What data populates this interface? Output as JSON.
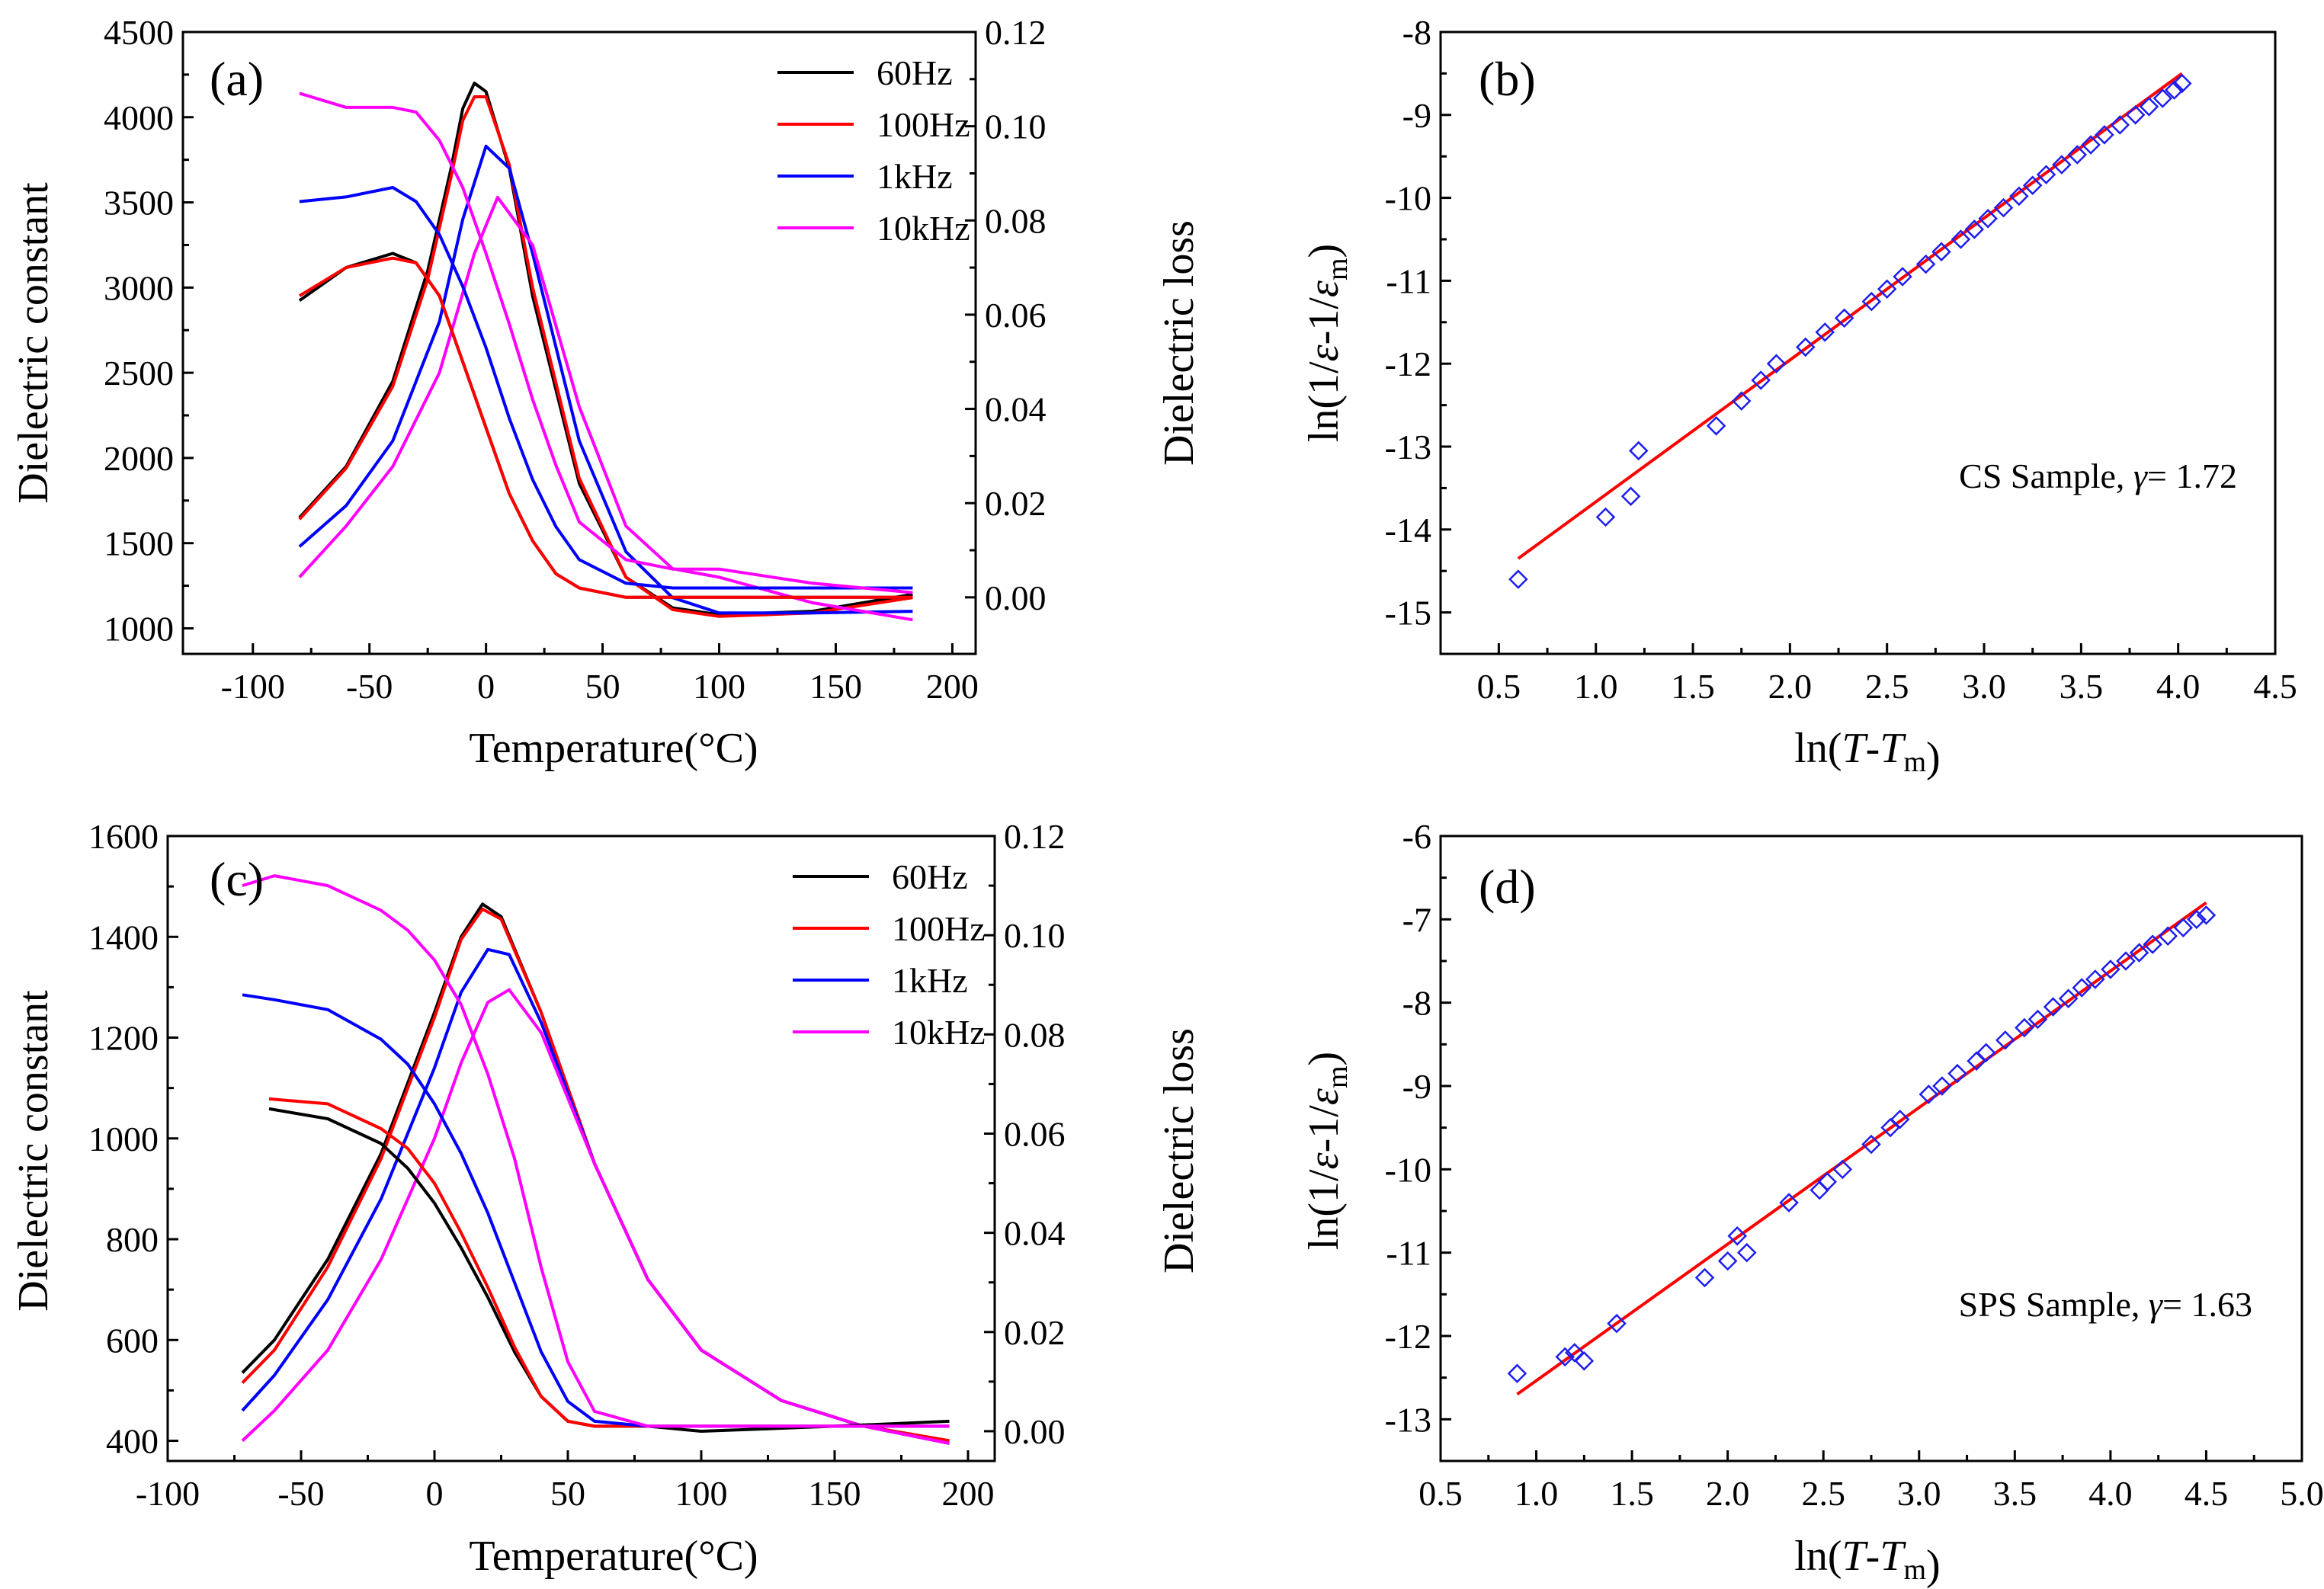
{
  "chart_data": [
    {
      "id": "a",
      "type": "line",
      "panel_label": "(a)",
      "xlabel": "Temperature(°C)",
      "ylabel": "Dielectric constant",
      "y2label": "Dielectric loss",
      "xlim": [
        -130,
        210
      ],
      "xticks": [
        -100,
        -50,
        0,
        50,
        100,
        150,
        200
      ],
      "xticklabels": [
        "-100",
        "-50",
        "0",
        "50",
        "100",
        "150",
        "200"
      ],
      "ylim": [
        850,
        4500
      ],
      "yticks": [
        1000,
        1500,
        2000,
        2500,
        3000,
        3500,
        4000,
        4500
      ],
      "yticklabels": [
        "1000",
        "1500",
        "2000",
        "2500",
        "3000",
        "3500",
        "4000",
        "4500"
      ],
      "y2lim": [
        -0.012,
        0.12
      ],
      "y2ticks": [
        0.0,
        0.02,
        0.04,
        0.06,
        0.08,
        0.1,
        0.12
      ],
      "y2ticklabels": [
        "0.00",
        "0.02",
        "0.04",
        "0.06",
        "0.08",
        "0.10",
        "0.12"
      ],
      "legend_position": "top-right",
      "series": [
        {
          "name": "60Hz",
          "color": "#000000",
          "kind": "constant",
          "x": [
            -80,
            -60,
            -40,
            -25,
            -15,
            -10,
            -5,
            0,
            10,
            20,
            40,
            60,
            80,
            100,
            140,
            183
          ],
          "y": [
            1650,
            1950,
            2450,
            3100,
            3700,
            4050,
            4200,
            4150,
            3700,
            2950,
            1850,
            1300,
            1120,
            1080,
            1100,
            1200
          ]
        },
        {
          "name": "100Hz",
          "color": "#ff0000",
          "kind": "constant",
          "x": [
            -80,
            -60,
            -40,
            -25,
            -15,
            -10,
            -5,
            0,
            10,
            20,
            40,
            60,
            80,
            100,
            140,
            183
          ],
          "y": [
            1640,
            1940,
            2420,
            3050,
            3650,
            3980,
            4120,
            4120,
            3720,
            3000,
            1880,
            1300,
            1110,
            1070,
            1090,
            1180
          ]
        },
        {
          "name": "1kHz",
          "color": "#0000ff",
          "kind": "constant",
          "x": [
            -80,
            -60,
            -40,
            -20,
            -10,
            0,
            10,
            20,
            40,
            60,
            80,
            100,
            140,
            183
          ],
          "y": [
            1480,
            1720,
            2100,
            2800,
            3400,
            3830,
            3700,
            3200,
            2100,
            1450,
            1180,
            1090,
            1090,
            1100
          ]
        },
        {
          "name": "10kHz",
          "color": "#ff00ff",
          "kind": "constant",
          "x": [
            -80,
            -60,
            -40,
            -20,
            -5,
            5,
            20,
            40,
            60,
            80,
            100,
            140,
            183
          ],
          "y": [
            1300,
            1600,
            1950,
            2500,
            3200,
            3530,
            3250,
            2300,
            1600,
            1350,
            1300,
            1150,
            1050
          ]
        },
        {
          "name": "60Hz",
          "color": "#000000",
          "kind": "loss",
          "x": [
            -80,
            -60,
            -40,
            -30,
            -20,
            -10,
            0,
            10,
            20,
            30,
            40,
            60,
            80,
            100,
            140,
            183
          ],
          "y": [
            0.063,
            0.07,
            0.073,
            0.071,
            0.064,
            0.05,
            0.036,
            0.022,
            0.012,
            0.005,
            0.002,
            0.0,
            0.0,
            0.0,
            0.0,
            0.0
          ]
        },
        {
          "name": "100Hz",
          "color": "#ff0000",
          "kind": "loss",
          "x": [
            -80,
            -60,
            -40,
            -30,
            -20,
            -10,
            0,
            10,
            20,
            30,
            40,
            60,
            80,
            100,
            140,
            183
          ],
          "y": [
            0.064,
            0.07,
            0.072,
            0.071,
            0.064,
            0.05,
            0.036,
            0.022,
            0.012,
            0.005,
            0.002,
            0.0,
            0.0,
            0.0,
            0.0,
            0.0
          ]
        },
        {
          "name": "1kHz",
          "color": "#0000ff",
          "kind": "loss",
          "x": [
            -80,
            -60,
            -40,
            -30,
            -20,
            -10,
            0,
            10,
            20,
            30,
            40,
            60,
            80,
            100,
            140,
            183
          ],
          "y": [
            0.084,
            0.085,
            0.087,
            0.084,
            0.077,
            0.066,
            0.053,
            0.038,
            0.025,
            0.015,
            0.008,
            0.003,
            0.002,
            0.002,
            0.002,
            0.002
          ]
        },
        {
          "name": "10kHz",
          "color": "#ff00ff",
          "kind": "loss",
          "x": [
            -80,
            -60,
            -40,
            -30,
            -20,
            -10,
            0,
            10,
            20,
            30,
            40,
            60,
            80,
            100,
            140,
            183
          ],
          "y": [
            0.107,
            0.104,
            0.104,
            0.103,
            0.097,
            0.087,
            0.073,
            0.058,
            0.042,
            0.028,
            0.016,
            0.008,
            0.006,
            0.006,
            0.003,
            0.001
          ]
        }
      ]
    },
    {
      "id": "b",
      "type": "scatter",
      "panel_label": "(b)",
      "xlabel": "ln(T-Tm)",
      "ylabel": "ln(1/ε-1/εm)",
      "xlim": [
        0.2,
        4.5
      ],
      "xticks": [
        0.5,
        1.0,
        1.5,
        2.0,
        2.5,
        3.0,
        3.5,
        4.0,
        4.5
      ],
      "xticklabels": [
        "0.5",
        "1.0",
        "1.5",
        "2.0",
        "2.5",
        "3.0",
        "3.5",
        "4.0",
        "4.5"
      ],
      "ylim": [
        -15.5,
        -8
      ],
      "yticks": [
        -15,
        -14,
        -13,
        -12,
        -11,
        -10,
        -9,
        -8
      ],
      "yticklabels": [
        "-15",
        "-14",
        "-13",
        "-12",
        "-11",
        "-10",
        "-9",
        "-8"
      ],
      "annotation": "CS Sample, γ= 1.72",
      "points": {
        "x": [
          0.6,
          1.05,
          1.18,
          1.22,
          1.62,
          1.75,
          1.85,
          1.93,
          2.08,
          2.18,
          2.28,
          2.42,
          2.5,
          2.58,
          2.7,
          2.78,
          2.88,
          2.95,
          3.02,
          3.1,
          3.18,
          3.25,
          3.32,
          3.4,
          3.48,
          3.55,
          3.62,
          3.7,
          3.78,
          3.85,
          3.92,
          3.98,
          4.02
        ],
        "y": [
          -14.6,
          -13.85,
          -13.6,
          -13.05,
          -12.75,
          -12.45,
          -12.2,
          -12.0,
          -11.8,
          -11.62,
          -11.45,
          -11.25,
          -11.1,
          -10.95,
          -10.8,
          -10.65,
          -10.5,
          -10.38,
          -10.25,
          -10.12,
          -9.98,
          -9.85,
          -9.72,
          -9.6,
          -9.48,
          -9.36,
          -9.24,
          -9.12,
          -9.0,
          -8.9,
          -8.8,
          -8.7,
          -8.62
        ]
      },
      "fit": {
        "x": [
          0.6,
          4.02
        ],
        "y": [
          -14.35,
          -8.5
        ]
      }
    },
    {
      "id": "c",
      "type": "line",
      "panel_label": "(c)",
      "xlabel": "Temperature(°C)",
      "ylabel": "Dielectric constant",
      "y2label": "Dielectric loss",
      "xlim": [
        -100,
        210
      ],
      "xticks": [
        -100,
        -50,
        0,
        50,
        100,
        150,
        200
      ],
      "xticklabels": [
        "-100",
        "-50",
        "0",
        "50",
        "100",
        "150",
        "200"
      ],
      "ylim": [
        360,
        1600
      ],
      "yticks": [
        400,
        600,
        800,
        1000,
        1200,
        1400,
        1600
      ],
      "yticklabels": [
        "400",
        "600",
        "800",
        "1000",
        "1200",
        "1400",
        "1600"
      ],
      "y2lim": [
        -0.006,
        0.12
      ],
      "y2ticks": [
        0.0,
        0.02,
        0.04,
        0.06,
        0.08,
        0.1,
        0.12
      ],
      "y2ticklabels": [
        "0.00",
        "0.02",
        "0.04",
        "0.06",
        "0.08",
        "0.10",
        "0.12"
      ],
      "legend_position": "top-right",
      "series": [
        {
          "name": "60Hz",
          "color": "#000000",
          "kind": "constant",
          "x": [
            -72,
            -60,
            -40,
            -20,
            0,
            10,
            18,
            25,
            40,
            60,
            80,
            100,
            130,
            160,
            193
          ],
          "y": [
            535,
            600,
            760,
            970,
            1250,
            1400,
            1465,
            1440,
            1250,
            950,
            720,
            580,
            480,
            430,
            400
          ]
        },
        {
          "name": "100Hz",
          "color": "#ff0000",
          "kind": "constant",
          "x": [
            -72,
            -60,
            -40,
            -20,
            0,
            10,
            18,
            25,
            40,
            60,
            80,
            100,
            130,
            160,
            193
          ],
          "y": [
            515,
            580,
            745,
            960,
            1240,
            1395,
            1455,
            1435,
            1250,
            950,
            720,
            580,
            480,
            430,
            400
          ]
        },
        {
          "name": "1kHz",
          "color": "#0000ff",
          "kind": "constant",
          "x": [
            -72,
            -60,
            -40,
            -20,
            0,
            10,
            20,
            28,
            40,
            60,
            80,
            100,
            130,
            160,
            193
          ],
          "y": [
            460,
            530,
            680,
            880,
            1140,
            1290,
            1375,
            1365,
            1230,
            950,
            720,
            580,
            480,
            430,
            395
          ]
        },
        {
          "name": "10kHz",
          "color": "#ff00ff",
          "kind": "constant",
          "x": [
            -72,
            -60,
            -40,
            -20,
            0,
            10,
            20,
            28,
            40,
            60,
            80,
            100,
            130,
            160,
            193
          ],
          "y": [
            400,
            460,
            580,
            760,
            1000,
            1150,
            1270,
            1295,
            1210,
            950,
            720,
            580,
            480,
            430,
            395
          ]
        },
        {
          "name": "60Hz",
          "color": "#000000",
          "kind": "loss",
          "x": [
            -62,
            -40,
            -20,
            -10,
            0,
            10,
            20,
            30,
            40,
            50,
            60,
            80,
            100,
            150,
            193
          ],
          "y": [
            0.065,
            0.063,
            0.058,
            0.053,
            0.046,
            0.037,
            0.027,
            0.016,
            0.007,
            0.002,
            0.001,
            0.001,
            0.0,
            0.001,
            0.002
          ]
        },
        {
          "name": "100Hz",
          "color": "#ff0000",
          "kind": "loss",
          "x": [
            -62,
            -40,
            -20,
            -10,
            0,
            10,
            20,
            30,
            40,
            50,
            60,
            80,
            100,
            150,
            193
          ],
          "y": [
            0.067,
            0.066,
            0.061,
            0.057,
            0.05,
            0.04,
            0.029,
            0.017,
            0.007,
            0.002,
            0.001,
            0.001,
            0.001,
            0.001,
            0.001
          ]
        },
        {
          "name": "1kHz",
          "color": "#0000ff",
          "kind": "loss",
          "x": [
            -72,
            -60,
            -40,
            -20,
            -10,
            0,
            10,
            20,
            30,
            40,
            50,
            60,
            80,
            100,
            150,
            193
          ],
          "y": [
            0.088,
            0.087,
            0.085,
            0.079,
            0.074,
            0.066,
            0.056,
            0.044,
            0.03,
            0.016,
            0.006,
            0.002,
            0.001,
            0.001,
            0.001,
            0.001
          ]
        },
        {
          "name": "10kHz",
          "color": "#ff00ff",
          "kind": "loss",
          "x": [
            -72,
            -60,
            -40,
            -20,
            -10,
            0,
            10,
            20,
            30,
            40,
            50,
            60,
            80,
            100,
            150,
            193
          ],
          "y": [
            0.11,
            0.112,
            0.11,
            0.105,
            0.101,
            0.095,
            0.086,
            0.072,
            0.055,
            0.033,
            0.014,
            0.004,
            0.001,
            0.001,
            0.001,
            0.001
          ]
        }
      ]
    },
    {
      "id": "d",
      "type": "scatter",
      "panel_label": "(d)",
      "xlabel": "ln(T-Tm)",
      "ylabel": "ln(1/ε-1/εm)",
      "xlim": [
        0.5,
        5.0
      ],
      "xticks": [
        0.5,
        1.0,
        1.5,
        2.0,
        2.5,
        3.0,
        3.5,
        4.0,
        4.5,
        5.0
      ],
      "xticklabels": [
        "0.5",
        "1.0",
        "1.5",
        "2.0",
        "2.5",
        "3.0",
        "3.5",
        "4.0",
        "4.5",
        "5.0"
      ],
      "ylim": [
        -13.5,
        -6
      ],
      "yticks": [
        -13,
        -12,
        -11,
        -10,
        -9,
        -8,
        -7,
        -6
      ],
      "yticklabels": [
        "-13",
        "-12",
        "-11",
        "-10",
        "-9",
        "-8",
        "-7",
        "-6"
      ],
      "annotation": "SPS Sample, γ= 1.63",
      "points": {
        "x": [
          0.9,
          1.15,
          1.2,
          1.25,
          1.42,
          1.88,
          2.0,
          2.05,
          2.1,
          2.32,
          2.48,
          2.52,
          2.6,
          2.75,
          2.85,
          2.9,
          3.05,
          3.12,
          3.2,
          3.3,
          3.35,
          3.45,
          3.55,
          3.62,
          3.7,
          3.78,
          3.85,
          3.92,
          4.0,
          4.08,
          4.15,
          4.22,
          4.3,
          4.38,
          4.45,
          4.5
        ],
        "y": [
          -12.45,
          -12.25,
          -12.2,
          -12.3,
          -11.85,
          -11.3,
          -11.1,
          -10.8,
          -11.0,
          -10.4,
          -10.25,
          -10.15,
          -10.0,
          -9.7,
          -9.5,
          -9.4,
          -9.1,
          -9.0,
          -8.85,
          -8.7,
          -8.6,
          -8.45,
          -8.3,
          -8.2,
          -8.05,
          -7.95,
          -7.82,
          -7.72,
          -7.6,
          -7.5,
          -7.4,
          -7.3,
          -7.2,
          -7.1,
          -7.0,
          -6.95
        ]
      },
      "fit": {
        "x": [
          0.9,
          4.5
        ],
        "y": [
          -12.7,
          -6.8
        ]
      }
    }
  ]
}
